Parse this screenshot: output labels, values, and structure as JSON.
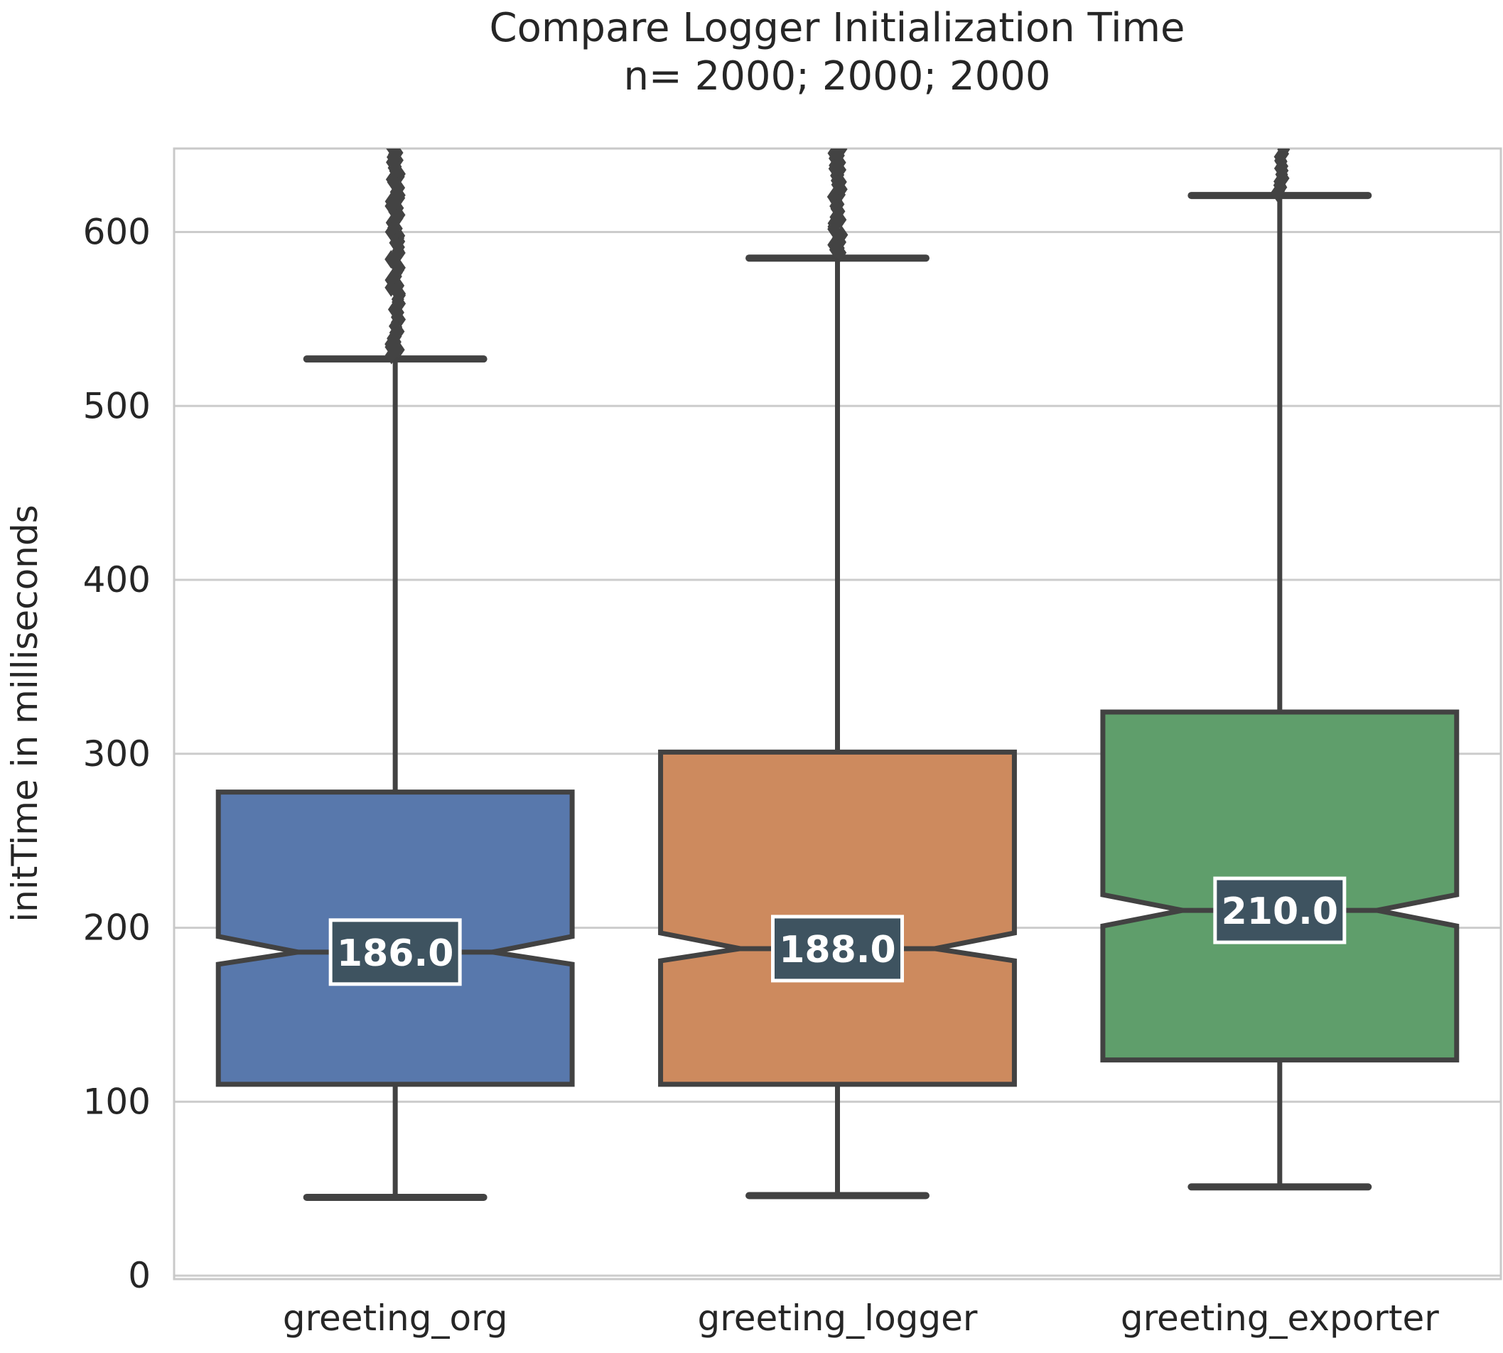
{
  "title": {
    "line1": "Compare Logger Initialization Time",
    "line2": "n= 2000; 2000; 2000"
  },
  "axes": {
    "ylabel": "initTime in milliseconds",
    "yticks": [
      0,
      100,
      200,
      300,
      400,
      500,
      600
    ],
    "ylim": [
      -2,
      648
    ],
    "grid_on": true,
    "grid_color": "#cccccc",
    "spine_color": "#c9c9c9",
    "text_color": "#262626",
    "plot_bg": "#ffffff"
  },
  "chart_data": {
    "type": "boxplot",
    "notched": true,
    "categories": [
      "greeting_org",
      "greeting_logger",
      "greeting_exporter"
    ],
    "n_per_group": [
      2000,
      2000,
      2000
    ],
    "box_edge_color": "#424242",
    "flier_color": "#434343",
    "median_label_bg": "#3e5360",
    "median_label_border": "#ffffff",
    "median_label_text_color": "#ffffff",
    "series": [
      {
        "name": "greeting_org",
        "color": "#5878ac",
        "whisker_low": 45,
        "q1": 110,
        "median": 186,
        "q3": 278,
        "whisker_high": 527,
        "notch_low": 179,
        "notch_high": 195,
        "outliers_min": 530,
        "outliers_max": 648,
        "median_label": "186.0"
      },
      {
        "name": "greeting_logger",
        "color": "#cd8a5e",
        "whisker_low": 46,
        "q1": 110,
        "median": 188,
        "q3": 301,
        "whisker_high": 585,
        "notch_low": 181,
        "notch_high": 197,
        "outliers_min": 588,
        "outliers_max": 647,
        "median_label": "188.0"
      },
      {
        "name": "greeting_exporter",
        "color": "#5f9e6b",
        "whisker_low": 51,
        "q1": 124,
        "median": 210,
        "q3": 324,
        "whisker_high": 621,
        "notch_low": 201,
        "notch_high": 219,
        "outliers_min": 622,
        "outliers_max": 647,
        "median_label": "210.0"
      }
    ]
  }
}
